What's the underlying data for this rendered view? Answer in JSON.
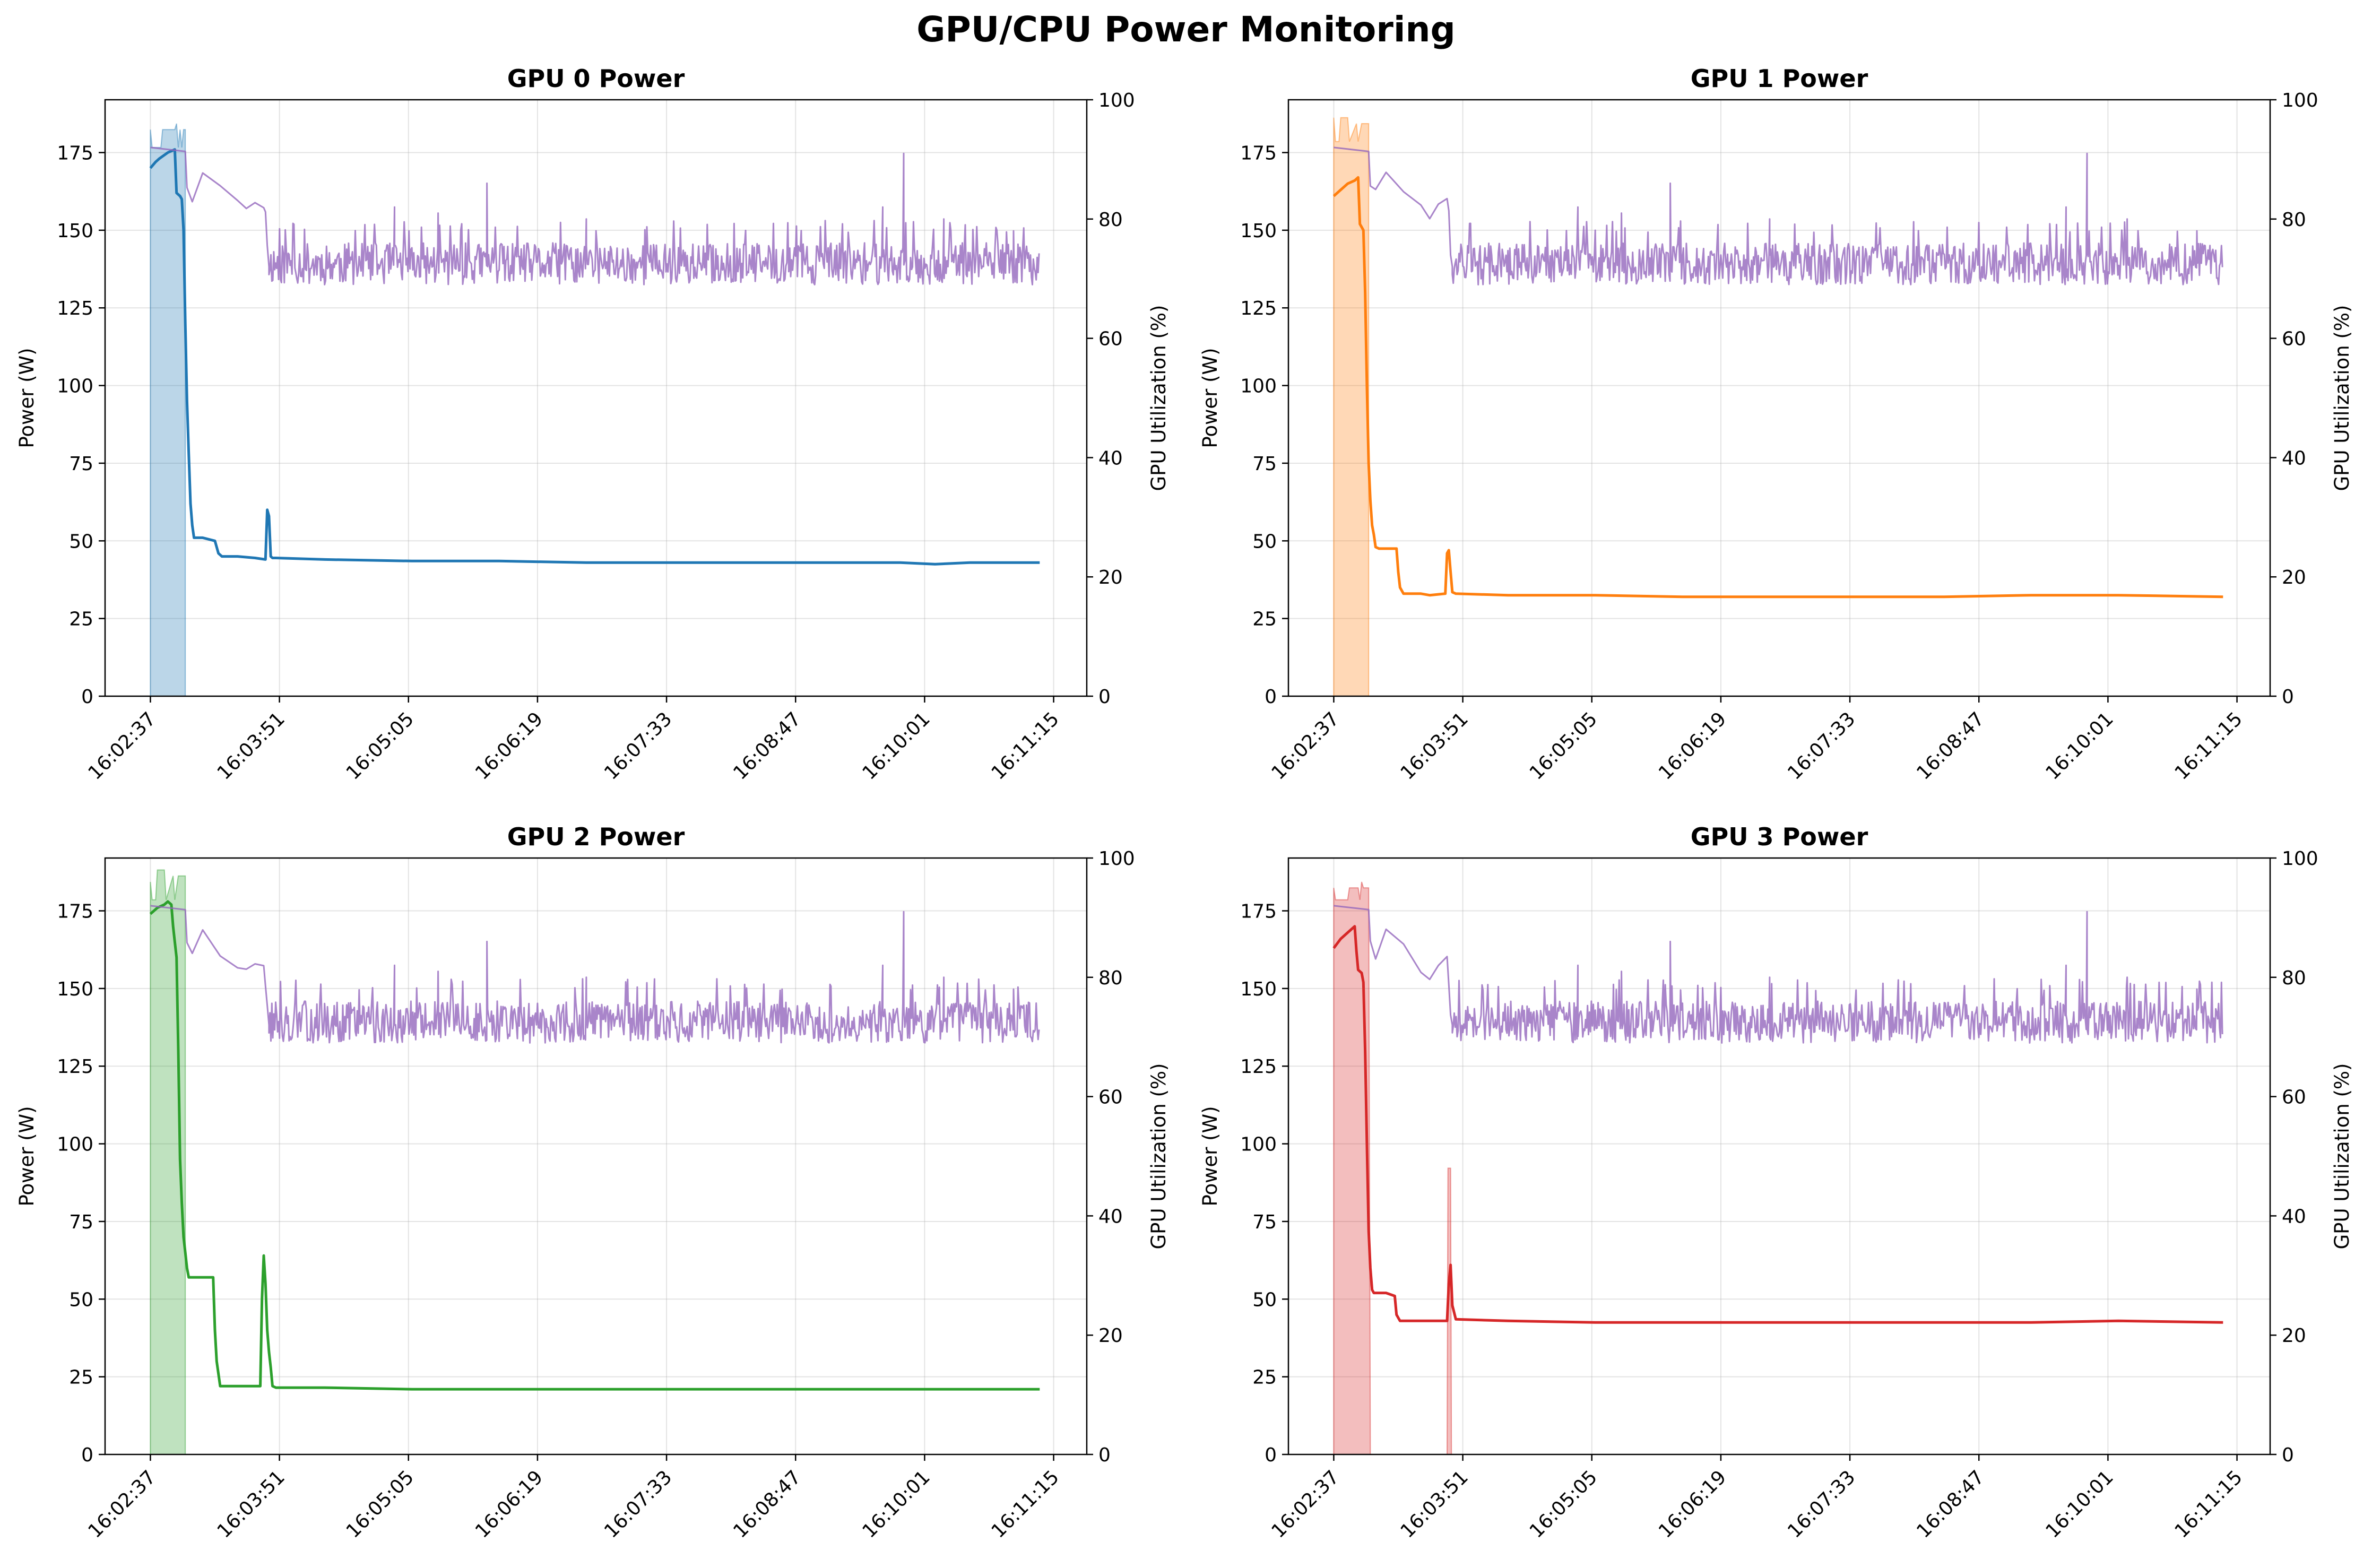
{
  "figure_title": "GPU/CPU Power Monitoring",
  "chart_data": [
    {
      "type": "line",
      "title": "GPU 0 Power",
      "xlabel": "",
      "ylabel": "Power (W)",
      "y2label": "GPU Utilization (%)",
      "x_tick_labels": [
        "16:02:37",
        "16:03:51",
        "16:05:05",
        "16:06:19",
        "16:07:33",
        "16:08:47",
        "16:10:01",
        "16:11:15"
      ],
      "x_ticks_seconds": [
        0,
        74,
        148,
        222,
        296,
        370,
        444,
        518
      ],
      "xlim_seconds": [
        -26,
        537
      ],
      "ylim": [
        0,
        192
      ],
      "y_ticks": [
        0,
        25,
        50,
        75,
        100,
        125,
        150,
        175
      ],
      "y2lim": [
        0,
        100
      ],
      "y2_ticks": [
        0,
        20,
        40,
        60,
        80,
        100
      ],
      "grid": true,
      "colors": {
        "power": "#1f77b4",
        "utilization_fill": "#1f77b4",
        "cpu_series": "#9467bd"
      },
      "series": [
        {
          "axis": "left",
          "style": "line",
          "x_seconds": [
            0,
            3,
            5,
            10,
            14,
            15,
            17,
            18,
            19,
            20,
            21,
            22,
            23,
            24,
            25,
            30,
            37,
            39,
            41,
            50,
            60,
            66,
            67,
            68,
            69,
            70,
            72,
            100,
            150,
            200,
            250,
            300,
            350,
            400,
            430,
            450,
            470,
            510
          ],
          "values": [
            170,
            172,
            173,
            175,
            176,
            162,
            161,
            160,
            150,
            120,
            95,
            78,
            62,
            55,
            51,
            51,
            50,
            46,
            45,
            45,
            44.5,
            44,
            60,
            58,
            45,
            44.5,
            44.5,
            44,
            43.5,
            43.5,
            43,
            43,
            43,
            43,
            43,
            42.5,
            43,
            43
          ]
        },
        {
          "axis": "right",
          "style": "area",
          "x_seconds": [
            0,
            1,
            6,
            7,
            14,
            15,
            16,
            17,
            18,
            19,
            20
          ],
          "values": [
            95,
            92,
            92,
            95,
            95,
            96,
            92,
            95,
            92,
            95,
            95
          ]
        },
        {
          "axis": "right",
          "style": "line",
          "x_seconds": [
            0,
            20,
            21,
            24,
            30,
            40,
            50,
            55,
            60,
            65,
            66,
            67,
            68,
            70,
            510
          ],
          "values": [
            92,
            92,
            86,
            84,
            87,
            85,
            82,
            81,
            83,
            82,
            80,
            75,
            72,
            71,
            70
          ],
          "noise": {
            "from": 68,
            "to": 510,
            "low": 69,
            "high": 76,
            "spikes": [
              [
                140,
                82
              ],
              [
                165,
                81
              ],
              [
                193,
                86
              ],
              [
                250,
                80
              ],
              [
                420,
                82
              ],
              [
                432,
                91
              ],
              [
                455,
                80
              ],
              [
                495,
                78
              ]
            ],
            "seed": 11
          }
        }
      ]
    },
    {
      "type": "line",
      "title": "GPU 1 Power",
      "xlabel": "",
      "ylabel": "Power (W)",
      "y2label": "GPU Utilization (%)",
      "x_tick_labels": [
        "16:02:37",
        "16:03:51",
        "16:05:05",
        "16:06:19",
        "16:07:33",
        "16:08:47",
        "16:10:01",
        "16:11:15"
      ],
      "x_ticks_seconds": [
        0,
        74,
        148,
        222,
        296,
        370,
        444,
        518
      ],
      "xlim_seconds": [
        -26,
        537
      ],
      "ylim": [
        0,
        192
      ],
      "y_ticks": [
        0,
        25,
        50,
        75,
        100,
        125,
        150,
        175
      ],
      "y2lim": [
        0,
        100
      ],
      "y2_ticks": [
        0,
        20,
        40,
        60,
        80,
        100
      ],
      "grid": true,
      "colors": {
        "power": "#ff7f0e",
        "utilization_fill": "#ff7f0e",
        "cpu_series": "#9467bd"
      },
      "series": [
        {
          "axis": "left",
          "style": "line",
          "x_seconds": [
            0,
            4,
            8,
            12,
            14,
            15,
            16,
            17,
            18,
            19,
            20,
            21,
            22,
            23,
            24,
            26,
            30,
            36,
            37,
            38,
            40,
            45,
            50,
            55,
            64,
            65,
            66,
            67,
            68,
            70,
            100,
            150,
            200,
            250,
            300,
            350,
            400,
            450,
            510
          ],
          "values": [
            161,
            163,
            165,
            166,
            167,
            152,
            151,
            150,
            130,
            100,
            75,
            63,
            55,
            52,
            48,
            47.5,
            47.5,
            47.5,
            40,
            35,
            33,
            33,
            33,
            32.5,
            33,
            46,
            47,
            40,
            33.5,
            33,
            32.5,
            32.5,
            32,
            32,
            32,
            32,
            32.5,
            32.5,
            32
          ]
        },
        {
          "axis": "right",
          "style": "area",
          "x_seconds": [
            0,
            1,
            3,
            4,
            8,
            9,
            13,
            14,
            16,
            17,
            20
          ],
          "values": [
            97,
            93,
            93,
            97,
            97,
            93,
            96,
            93,
            96,
            96,
            96
          ]
        },
        {
          "axis": "right",
          "style": "line",
          "x_seconds": [
            0,
            20,
            21,
            24,
            30,
            40,
            50,
            55,
            60,
            65,
            66,
            67,
            68,
            70,
            510
          ],
          "values": [
            92,
            92,
            86,
            84,
            87,
            85,
            82,
            81,
            83,
            82,
            80,
            75,
            72,
            71,
            70
          ],
          "noise": {
            "from": 68,
            "to": 510,
            "low": 69,
            "high": 76,
            "spikes": [
              [
                140,
                82
              ],
              [
                165,
                81
              ],
              [
                193,
                86
              ],
              [
                250,
                80
              ],
              [
                420,
                82
              ],
              [
                432,
                91
              ],
              [
                455,
                80
              ],
              [
                495,
                78
              ]
            ],
            "seed": 12
          }
        }
      ]
    },
    {
      "type": "line",
      "title": "GPU 2 Power",
      "xlabel": "",
      "ylabel": "Power (W)",
      "y2label": "GPU Utilization (%)",
      "x_tick_labels": [
        "16:02:37",
        "16:03:51",
        "16:05:05",
        "16:06:19",
        "16:07:33",
        "16:08:47",
        "16:10:01",
        "16:11:15"
      ],
      "x_ticks_seconds": [
        0,
        74,
        148,
        222,
        296,
        370,
        444,
        518
      ],
      "xlim_seconds": [
        -26,
        537
      ],
      "ylim": [
        0,
        192
      ],
      "y_ticks": [
        0,
        25,
        50,
        75,
        100,
        125,
        150,
        175
      ],
      "y2lim": [
        0,
        100
      ],
      "y2_ticks": [
        0,
        20,
        40,
        60,
        80,
        100
      ],
      "grid": true,
      "colors": {
        "power": "#2ca02c",
        "utilization_fill": "#2ca02c",
        "cpu_series": "#9467bd"
      },
      "series": [
        {
          "axis": "left",
          "style": "line",
          "x_seconds": [
            0,
            4,
            8,
            10,
            12,
            13,
            14,
            15,
            16,
            17,
            18,
            19,
            20,
            21,
            22,
            23,
            24,
            30,
            36,
            37,
            38,
            40,
            45,
            55,
            63,
            64,
            65,
            66,
            67,
            68,
            69,
            70,
            72,
            100,
            150,
            200,
            250,
            300,
            350,
            400,
            450,
            510
          ],
          "values": [
            174,
            176,
            177,
            178,
            177,
            170,
            165,
            160,
            130,
            95,
            81,
            70,
            65,
            60,
            57,
            57,
            57,
            57,
            57,
            40,
            30,
            22,
            22,
            22,
            22,
            50,
            64,
            55,
            40,
            33,
            28,
            22,
            21.5,
            21.5,
            21,
            21,
            21,
            21,
            21,
            21,
            21,
            21
          ]
        },
        {
          "axis": "right",
          "style": "area",
          "x_seconds": [
            0,
            1,
            3,
            4,
            8,
            9,
            13,
            14,
            16,
            17,
            20
          ],
          "values": [
            96,
            93,
            93,
            98,
            98,
            93,
            97,
            93,
            97,
            97,
            97
          ]
        },
        {
          "axis": "right",
          "style": "line",
          "x_seconds": [
            0,
            20,
            21,
            24,
            30,
            40,
            50,
            55,
            60,
            65,
            66,
            67,
            68,
            70,
            510
          ],
          "values": [
            92,
            92,
            86,
            84,
            87,
            85,
            82,
            81,
            83,
            82,
            80,
            75,
            72,
            71,
            70
          ],
          "noise": {
            "from": 68,
            "to": 510,
            "low": 69,
            "high": 76,
            "spikes": [
              [
                140,
                82
              ],
              [
                165,
                81
              ],
              [
                193,
                86
              ],
              [
                250,
                80
              ],
              [
                420,
                82
              ],
              [
                432,
                91
              ],
              [
                455,
                80
              ],
              [
                495,
                78
              ]
            ],
            "seed": 13
          }
        }
      ]
    },
    {
      "type": "line",
      "title": "GPU 3 Power",
      "xlabel": "",
      "ylabel": "Power (W)",
      "y2label": "GPU Utilization (%)",
      "x_tick_labels": [
        "16:02:37",
        "16:03:51",
        "16:05:05",
        "16:06:19",
        "16:07:33",
        "16:08:47",
        "16:10:01",
        "16:11:15"
      ],
      "x_ticks_seconds": [
        0,
        74,
        148,
        222,
        296,
        370,
        444,
        518
      ],
      "xlim_seconds": [
        -26,
        537
      ],
      "ylim": [
        0,
        192
      ],
      "y_ticks": [
        0,
        25,
        50,
        75,
        100,
        125,
        150,
        175
      ],
      "y2lim": [
        0,
        100
      ],
      "y2_ticks": [
        0,
        20,
        40,
        60,
        80,
        100
      ],
      "grid": true,
      "colors": {
        "power": "#d62728",
        "utilization_fill": "#d62728",
        "cpu_series": "#9467bd"
      },
      "series": [
        {
          "axis": "left",
          "style": "line",
          "x_seconds": [
            0,
            4,
            8,
            12,
            13,
            14,
            16,
            17,
            18,
            19,
            20,
            21,
            22,
            23,
            24,
            30,
            35,
            36,
            38,
            40,
            50,
            60,
            65,
            66,
            67,
            68,
            70,
            100,
            150,
            200,
            250,
            300,
            350,
            400,
            450,
            510
          ],
          "values": [
            163,
            166,
            168,
            170,
            162,
            156,
            155,
            152,
            130,
            100,
            72,
            60,
            53,
            52,
            52,
            52,
            51,
            45,
            43,
            43,
            43,
            43,
            43,
            55,
            61,
            48,
            43.5,
            43,
            42.5,
            42.5,
            42.5,
            42.5,
            42.5,
            42.5,
            43,
            42.5
          ]
        },
        {
          "axis": "right",
          "style": "area",
          "x_seconds": [
            0,
            1,
            8,
            9,
            14,
            15,
            16,
            17,
            20,
            21,
            65,
            65.5,
            67,
            67.5
          ],
          "values": [
            95,
            93,
            93,
            95,
            95,
            93,
            96,
            95,
            95,
            0,
            0,
            48,
            48,
            0
          ]
        },
        {
          "axis": "right",
          "style": "line",
          "x_seconds": [
            0,
            20,
            21,
            24,
            30,
            40,
            50,
            55,
            60,
            65,
            66,
            67,
            68,
            70,
            510
          ],
          "values": [
            92,
            92,
            86,
            84,
            87,
            85,
            82,
            81,
            83,
            82,
            80,
            75,
            72,
            71,
            70
          ],
          "noise": {
            "from": 68,
            "to": 510,
            "low": 69,
            "high": 76,
            "spikes": [
              [
                140,
                82
              ],
              [
                165,
                81
              ],
              [
                193,
                86
              ],
              [
                250,
                80
              ],
              [
                420,
                82
              ],
              [
                432,
                91
              ],
              [
                455,
                80
              ],
              [
                495,
                78
              ]
            ],
            "seed": 14
          }
        }
      ]
    }
  ]
}
